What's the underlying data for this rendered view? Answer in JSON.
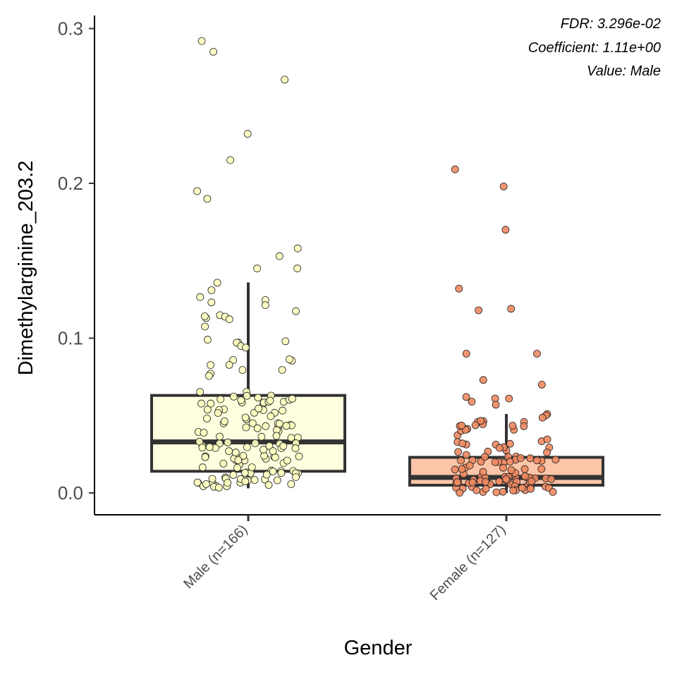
{
  "chart_data": {
    "type": "box",
    "xlabel": "Gender",
    "ylabel": "Dimethylarginine_203.2",
    "ylim": [
      -0.014,
      0.308
    ],
    "yticks": [
      "0.0",
      "0.1",
      "0.2",
      "0.3"
    ],
    "ytick_values": [
      0.0,
      0.1,
      0.2,
      0.3
    ],
    "categories": [
      "Male (n=166)",
      "Female (n=127)"
    ],
    "annotations": [
      "FDR: 3.296e-02",
      "Coefficient: 1.11e+00",
      "Value: Male"
    ],
    "grid": false,
    "legend": "none",
    "groups": [
      {
        "name": "Male (n=166)",
        "fill": "#ffffe0",
        "point_color": "#ffffc0",
        "whisker_low": 0.003,
        "q1": 0.014,
        "median": 0.033,
        "q3": 0.063,
        "whisker_high": 0.136,
        "outliers": [
          0.292,
          0.285,
          0.267,
          0.232,
          0.215,
          0.195,
          0.19,
          0.158,
          0.153,
          0.145,
          0.145
        ]
      },
      {
        "name": "Female (n=127)",
        "fill": "#fcc5a8",
        "point_color": "#f08a62",
        "whisker_low": 0.0,
        "q1": 0.005,
        "median": 0.01,
        "q3": 0.023,
        "whisker_high": 0.051,
        "outliers": [
          0.209,
          0.198,
          0.17,
          0.132,
          0.119,
          0.118,
          0.09,
          0.09,
          0.073,
          0.07,
          0.062,
          0.061,
          0.061,
          0.059,
          0.057
        ]
      }
    ]
  }
}
